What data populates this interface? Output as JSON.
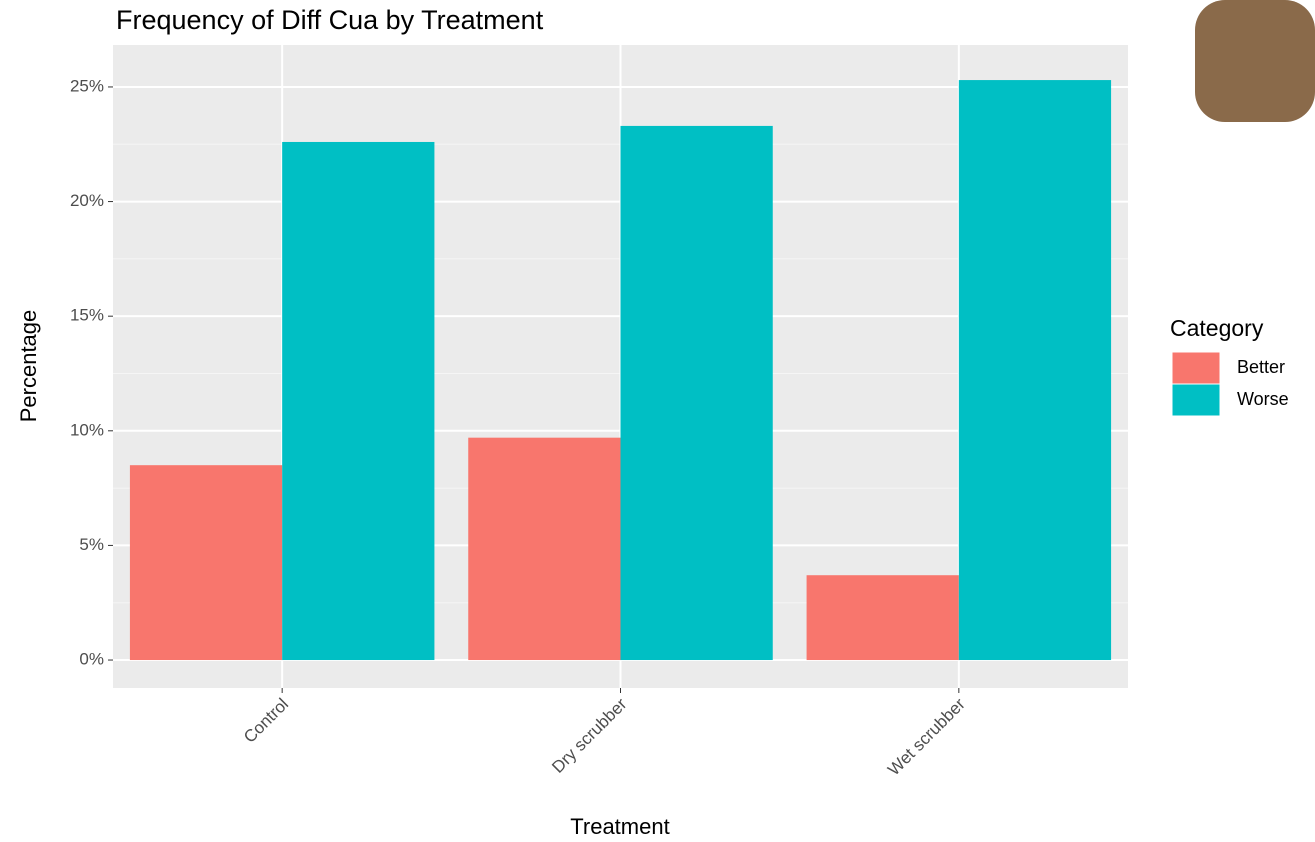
{
  "chart_data": {
    "type": "bar",
    "title": "Frequency of Diff Cua by Treatment",
    "x_label": "Treatment",
    "y_label": "Percentage",
    "legend_title": "Category",
    "categories": [
      "Control",
      "Dry scrubber",
      "Wet scrubber"
    ],
    "series": [
      {
        "name": "Better",
        "color": "#f8766d",
        "values": [
          8.5,
          9.7,
          3.7
        ]
      },
      {
        "name": "Worse",
        "color": "#00bfc4",
        "values": [
          22.6,
          23.3,
          25.3
        ]
      }
    ],
    "ylim": [
      -1.22,
      26.83
    ],
    "yticks": [
      {
        "value": 0,
        "label": "0%"
      },
      {
        "value": 5,
        "label": "5%"
      },
      {
        "value": 10,
        "label": "10%"
      },
      {
        "value": 15,
        "label": "15%"
      },
      {
        "value": 20,
        "label": "20%"
      },
      {
        "value": 25,
        "label": "25%"
      }
    ],
    "grid": true
  }
}
